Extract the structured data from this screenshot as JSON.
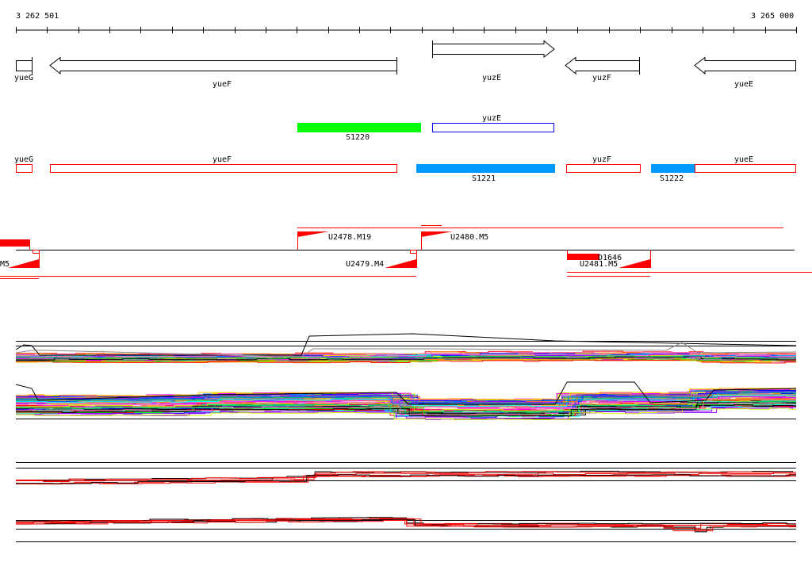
{
  "ruler": {
    "start_label": "3 262 501",
    "end_label": "3 265 000"
  },
  "genes": [
    {
      "name": "yueG",
      "strand": "none"
    },
    {
      "name": "yueF",
      "strand": "-"
    },
    {
      "name": "yuzE",
      "strand": "+"
    },
    {
      "name": "yuzF",
      "strand": "-"
    },
    {
      "name": "yueE",
      "strand": "-"
    }
  ],
  "segments_row1": [
    {
      "label": "S1220",
      "color": "#00ff00"
    },
    {
      "label": "yuzE",
      "color": "#0000ff"
    }
  ],
  "segments_row2": [
    {
      "label": "yueG",
      "color": "#ff0000"
    },
    {
      "label": "yueF",
      "color": "#ff0000"
    },
    {
      "label": "S1221",
      "color": "#0099ff"
    },
    {
      "label": "yuzF",
      "color": "#ff0000"
    },
    {
      "label": "S1222",
      "color": "#0099ff"
    },
    {
      "label": "yueE",
      "color": "#ff0000"
    }
  ],
  "transcripts": {
    "m5_left": "M5",
    "u2478": "U2478.M19",
    "u2479": "U2479.M4",
    "u2480": "U2480.M5",
    "d1646": "D1646",
    "u2481": "U2481.M5"
  },
  "colors": {
    "transcript": "#ff0000",
    "axis": "#000000"
  }
}
